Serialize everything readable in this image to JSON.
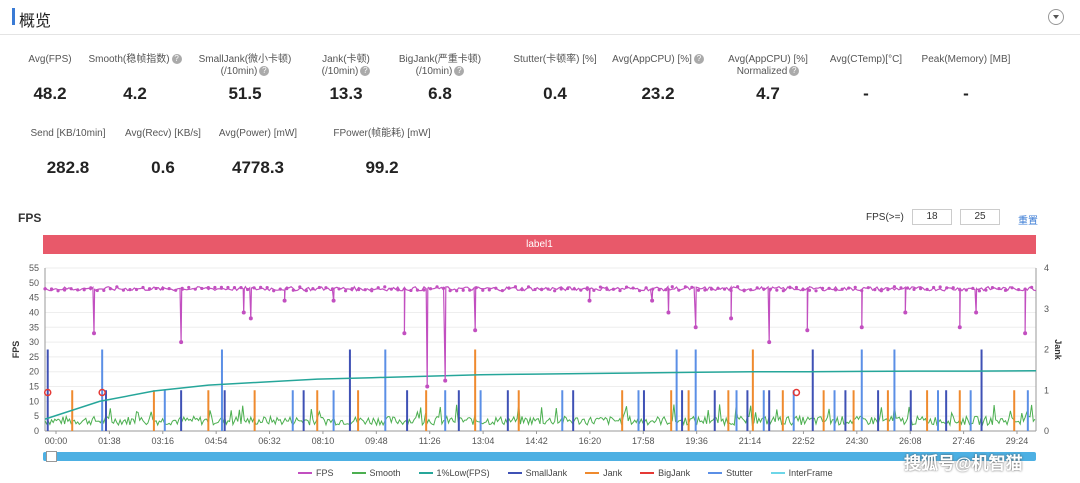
{
  "header": {
    "title": "概览"
  },
  "metrics_row1": [
    {
      "label": "Avg(FPS)",
      "value": "48.2",
      "help": false
    },
    {
      "label": "Smooth(稳帧指数)",
      "value": "4.2",
      "help": true
    },
    {
      "label": "SmallJank(微小卡顿)",
      "label2": "(/10min)",
      "value": "51.5",
      "help": true
    },
    {
      "label": "Jank(卡顿)",
      "label2": "(/10min)",
      "value": "13.3",
      "help": true
    },
    {
      "label": "BigJank(严重卡顿)",
      "label2": "(/10min)",
      "value": "6.8",
      "help": true
    },
    {
      "label": "Stutter(卡顿率) [%]",
      "value": "0.4",
      "help": false
    },
    {
      "label": "Avg(AppCPU) [%]",
      "value": "23.2",
      "help": true
    },
    {
      "label": "Avg(AppCPU) [%]",
      "label2": "Normalized",
      "value": "4.7",
      "help": true
    },
    {
      "label": "Avg(CTemp)[°C]",
      "value": "-",
      "help": false
    },
    {
      "label": "Peak(Memory) [MB]",
      "value": "-",
      "help": false
    }
  ],
  "metrics_row2": [
    {
      "label": "Send [KB/10min]",
      "value": "282.8",
      "help": false
    },
    {
      "label": "Avg(Recv) [KB/s]",
      "value": "0.6",
      "help": false
    },
    {
      "label": "Avg(Power) [mW]",
      "value": "4778.3",
      "help": false
    },
    {
      "label": "FPower(帧能耗) [mW]",
      "value": "99.2",
      "help": false
    }
  ],
  "chart_header": {
    "title": "FPS",
    "threshold_label": "FPS(>=)",
    "threshold1": "18",
    "threshold2": "25",
    "reset_label": "重置"
  },
  "label_bar": "label1",
  "watermark": "搜狐号@机智猫",
  "chart_data": {
    "type": "line",
    "x_ticks": [
      "00:00",
      "01:38",
      "03:16",
      "04:54",
      "06:32",
      "08:10",
      "09:48",
      "11:26",
      "13:04",
      "14:42",
      "16:20",
      "17:58",
      "19:36",
      "21:14",
      "22:52",
      "24:30",
      "26:08",
      "27:46",
      "29:24"
    ],
    "xlim": [
      0,
      1820
    ],
    "ylabel": "FPS",
    "y2label": "Jank",
    "ylim": [
      0,
      55
    ],
    "yticks": [
      0,
      5,
      10,
      15,
      20,
      25,
      30,
      35,
      40,
      45,
      50,
      55
    ],
    "y2lim": [
      0,
      4
    ],
    "y2ticks": [
      0,
      1,
      2,
      3,
      4
    ],
    "series": [
      {
        "name": "FPS",
        "color": "#c24fc0",
        "typical": 48,
        "dips": [
          [
            90,
            33
          ],
          [
            250,
            30
          ],
          [
            365,
            40
          ],
          [
            378,
            38
          ],
          [
            440,
            44
          ],
          [
            530,
            44
          ],
          [
            660,
            33
          ],
          [
            702,
            15
          ],
          [
            735,
            17
          ],
          [
            790,
            34
          ],
          [
            1000,
            44
          ],
          [
            1115,
            44
          ],
          [
            1145,
            40
          ],
          [
            1195,
            35
          ],
          [
            1260,
            38
          ],
          [
            1330,
            30
          ],
          [
            1400,
            34
          ],
          [
            1500,
            35
          ],
          [
            1580,
            40
          ],
          [
            1680,
            35
          ],
          [
            1710,
            40
          ],
          [
            1800,
            33
          ]
        ]
      },
      {
        "name": "Smooth",
        "color": "#4caf50",
        "typical": 3.5
      },
      {
        "name": "1%Low(FPS)",
        "color": "#26a69a",
        "points": [
          [
            0,
            4
          ],
          [
            100,
            10
          ],
          [
            200,
            13.5
          ],
          [
            300,
            15.5
          ],
          [
            400,
            16.5
          ],
          [
            500,
            17.5
          ],
          [
            600,
            18
          ],
          [
            700,
            18.5
          ],
          [
            800,
            19
          ],
          [
            900,
            19.2
          ],
          [
            1000,
            19.4
          ],
          [
            1100,
            19.6
          ],
          [
            1200,
            19.8
          ],
          [
            1300,
            20
          ],
          [
            1400,
            20
          ],
          [
            1500,
            20.1
          ],
          [
            1600,
            20.2
          ],
          [
            1700,
            20.2
          ],
          [
            1820,
            20.3
          ]
        ]
      },
      {
        "name": "SmallJank",
        "color": "#3f51b5"
      },
      {
        "name": "Jank",
        "color": "#ef8a2e"
      },
      {
        "name": "BigJank",
        "color": "#e53935",
        "markers": [
          [
            5,
            13
          ],
          [
            105,
            13
          ],
          [
            1380,
            13
          ]
        ]
      },
      {
        "name": "Stutter",
        "color": "#5b8fe6"
      },
      {
        "name": "InterFrame",
        "color": "#6dd6e8"
      }
    ],
    "jank_events": [
      [
        5,
        2
      ],
      [
        50,
        1
      ],
      [
        105,
        2
      ],
      [
        112,
        1
      ],
      [
        200,
        1
      ],
      [
        220,
        1
      ],
      [
        250,
        1
      ],
      [
        300,
        1
      ],
      [
        325,
        2
      ],
      [
        330,
        1
      ],
      [
        385,
        1
      ],
      [
        455,
        1
      ],
      [
        475,
        1
      ],
      [
        500,
        1
      ],
      [
        530,
        1
      ],
      [
        560,
        2
      ],
      [
        575,
        1
      ],
      [
        625,
        2
      ],
      [
        665,
        1
      ],
      [
        700,
        1
      ],
      [
        735,
        1
      ],
      [
        760,
        1
      ],
      [
        790,
        2
      ],
      [
        800,
        1
      ],
      [
        850,
        1
      ],
      [
        870,
        1
      ],
      [
        950,
        1
      ],
      [
        970,
        1
      ],
      [
        1060,
        1
      ],
      [
        1090,
        1
      ],
      [
        1100,
        1
      ],
      [
        1150,
        1
      ],
      [
        1160,
        2
      ],
      [
        1170,
        1
      ],
      [
        1182,
        1
      ],
      [
        1195,
        2
      ],
      [
        1230,
        1
      ],
      [
        1255,
        1
      ],
      [
        1270,
        1
      ],
      [
        1290,
        1
      ],
      [
        1300,
        2
      ],
      [
        1320,
        1
      ],
      [
        1330,
        1
      ],
      [
        1355,
        1
      ],
      [
        1375,
        1
      ],
      [
        1410,
        2
      ],
      [
        1430,
        1
      ],
      [
        1450,
        1
      ],
      [
        1470,
        1
      ],
      [
        1485,
        1
      ],
      [
        1500,
        2
      ],
      [
        1530,
        1
      ],
      [
        1548,
        1
      ],
      [
        1560,
        2
      ],
      [
        1590,
        1
      ],
      [
        1620,
        1
      ],
      [
        1640,
        1
      ],
      [
        1655,
        1
      ],
      [
        1680,
        1
      ],
      [
        1700,
        1
      ],
      [
        1720,
        2
      ],
      [
        1780,
        1
      ],
      [
        1805,
        1
      ]
    ],
    "legend_placement": "bottom"
  }
}
